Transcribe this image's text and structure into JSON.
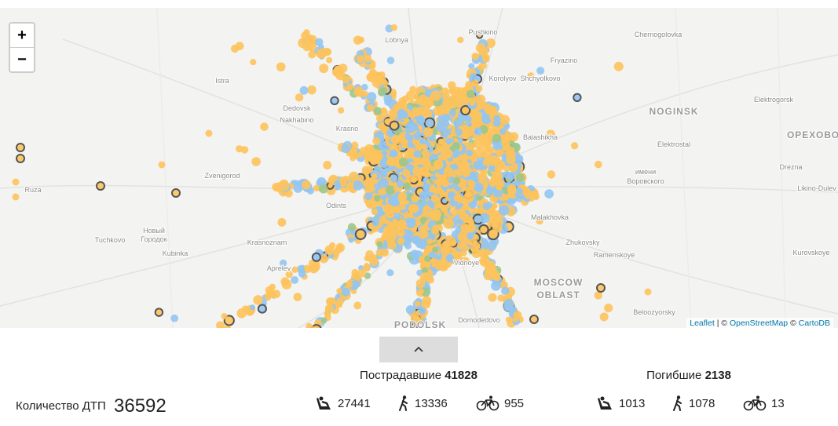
{
  "map": {
    "zoom_in": "+",
    "zoom_out": "−",
    "places": [
      "Lobnya",
      "Pushkino",
      "Chernogolovka",
      "Fryazino",
      "Korolyov",
      "Shchyolkovo",
      "Istra",
      "Dedovsk",
      "Nakhabino",
      "NOGINSK",
      "Elektrogorsk",
      "Krasno",
      "Balashikha",
      "Elektrostal",
      "ОРЕХОВО-",
      "Zvenigorod",
      "имени",
      "Воровского",
      "Drezna",
      "Ruza",
      "Likino-Dulev",
      "Odints",
      "Malakhovka",
      "Новый",
      "Городок",
      "Tuchkovo",
      "Kubinka",
      "Zhukovsky",
      "Krasnoznam",
      "Ramenskoye",
      "Kurovskoye",
      "Vidnoye",
      "Aprelev",
      "MOSCOW",
      "OBLAST",
      "Beloozyorsky",
      "PODOLSK",
      "Domodedovo"
    ],
    "attribution": {
      "leaflet": "Leaflet",
      "sep": "| ©",
      "osm": "OpenStreetMap",
      "sep2": "©",
      "carto": "CartoDB"
    }
  },
  "stats": {
    "accidents": {
      "label": "Количество ДТП",
      "value": 36592
    },
    "injured": {
      "label": "Пострадавшие",
      "total": 41828,
      "drivers": 27441,
      "pedestrians": 13336,
      "cyclists": 955
    },
    "killed": {
      "label": "Погибшие",
      "total": 2138,
      "drivers": 1013,
      "pedestrians": 1078,
      "cyclists": 13
    }
  }
}
